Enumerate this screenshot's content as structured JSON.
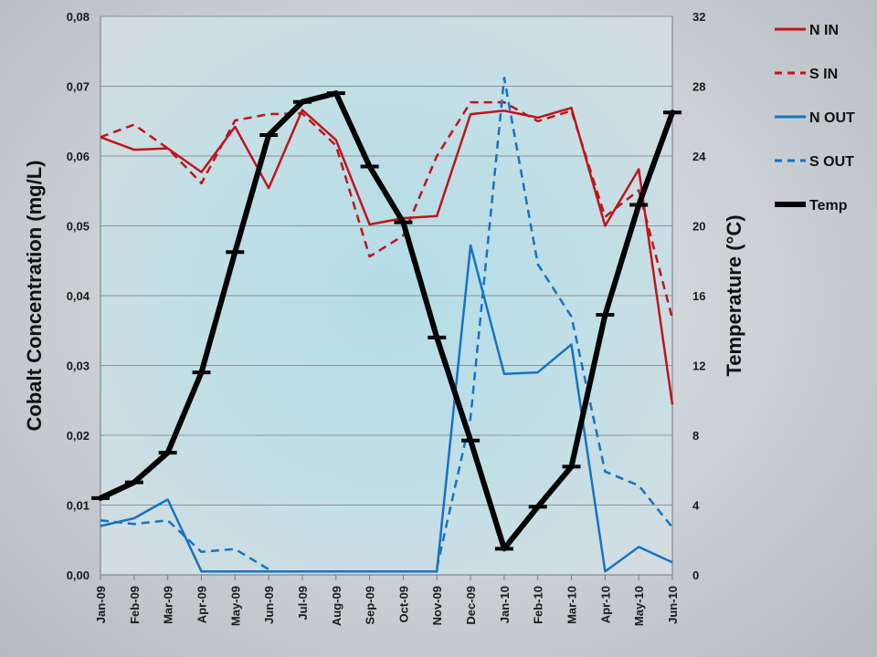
{
  "chart_data": {
    "type": "line",
    "categories": [
      "Jan-09",
      "Feb-09",
      "Mar-09",
      "Apr-09",
      "May-09",
      "Jun-09",
      "Jul-09",
      "Aug-09",
      "Sep-09",
      "Oct-09",
      "Nov-09",
      "Dec-09",
      "Jan-10",
      "Feb-10",
      "Mar-10",
      "Apr-10",
      "May-10",
      "Jun-10"
    ],
    "ylabel": "Cobalt Concentration (mg/L)",
    "y2label": "Temperature (°C)",
    "ylim": [
      0,
      0.08
    ],
    "y2lim": [
      0,
      32
    ],
    "yticks": [
      "0,00",
      "0,01",
      "0,02",
      "0,03",
      "0,04",
      "0,05",
      "0,06",
      "0,07",
      "0,08"
    ],
    "y2ticks": [
      "0",
      "4",
      "8",
      "12",
      "16",
      "20",
      "24",
      "28",
      "32"
    ],
    "grid": "horizontal",
    "legend_position": "right",
    "series": [
      {
        "name": "N IN",
        "axis": "left",
        "color": "#c0141b",
        "dash": "solid",
        "values": [
          0.0627,
          0.0609,
          0.0611,
          0.0577,
          0.0642,
          0.0554,
          0.0666,
          0.0623,
          0.0502,
          0.0511,
          0.0514,
          0.066,
          0.0665,
          0.0655,
          0.0669,
          0.05,
          0.0581,
          0.0244
        ]
      },
      {
        "name": "S IN",
        "axis": "left",
        "color": "#c0141b",
        "dash": "dashed",
        "values": [
          0.0627,
          0.0645,
          0.0611,
          0.0561,
          0.0651,
          0.066,
          0.0661,
          0.0615,
          0.0456,
          0.0486,
          0.06,
          0.0677,
          0.0677,
          0.065,
          0.0665,
          0.0513,
          0.0551,
          0.0367
        ]
      },
      {
        "name": "N OUT",
        "axis": "left",
        "color": "#1673c2",
        "dash": "solid",
        "values": [
          0.007,
          0.0081,
          0.0108,
          0.0005,
          0.0005,
          0.0005,
          0.0005,
          0.0005,
          0.0005,
          0.0005,
          0.0005,
          0.0472,
          0.0288,
          0.029,
          0.033,
          0.0005,
          0.004,
          0.0018
        ]
      },
      {
        "name": "S OUT",
        "axis": "left",
        "color": "#1673c2",
        "dash": "dashed",
        "values": [
          0.0078,
          0.0073,
          0.0078,
          0.0033,
          0.0037,
          0.0008,
          null,
          null,
          null,
          null,
          0.001,
          0.0225,
          0.0712,
          0.0445,
          0.037,
          0.0148,
          0.0128,
          0.0068
        ]
      },
      {
        "name": "Temp",
        "axis": "right",
        "color": "#000000",
        "dash": "solid",
        "values": [
          4.4,
          5.3,
          7.0,
          11.6,
          18.5,
          25.2,
          27.1,
          27.6,
          23.4,
          20.2,
          13.6,
          7.7,
          1.5,
          3.9,
          6.2,
          14.9,
          21.2,
          26.5
        ]
      }
    ]
  }
}
